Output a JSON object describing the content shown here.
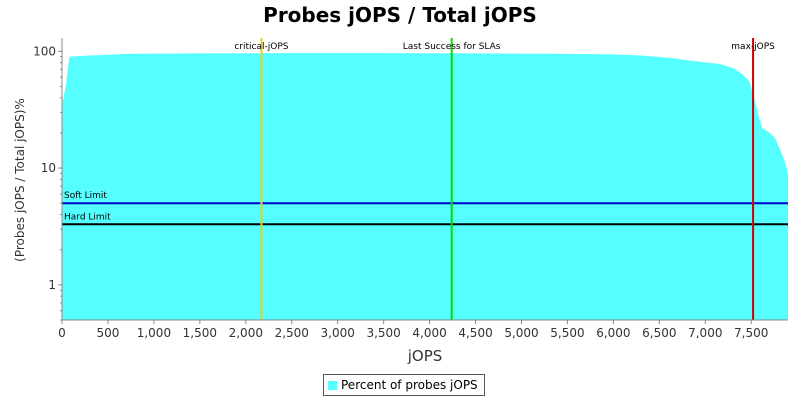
{
  "chart_data": {
    "type": "area",
    "title": "Probes jOPS / Total jOPS",
    "xlabel": "jOPS",
    "ylabel": "(Probes jOPS / Total jOPS)%",
    "yscale": "log",
    "xlim": [
      0,
      7900
    ],
    "ylim": [
      0.5,
      130
    ],
    "x_ticks": [
      0,
      500,
      1000,
      1500,
      2000,
      2500,
      3000,
      3500,
      4000,
      4500,
      5000,
      5500,
      6000,
      6500,
      7000,
      7500
    ],
    "x_tick_labels": [
      "0",
      "500",
      "1,000",
      "1,500",
      "2,000",
      "2,500",
      "3,000",
      "3,500",
      "4,000",
      "4,500",
      "5,000",
      "5,500",
      "6,000",
      "6,500",
      "7,000",
      "7,500"
    ],
    "y_ticks": [
      1,
      10,
      100
    ],
    "y_tick_labels": [
      "1",
      "10",
      "100"
    ],
    "grid": false,
    "legend_position": "bottom",
    "series": [
      {
        "name": "Percent of probes jOPS",
        "color": "#55FFFF",
        "x": [
          0,
          40,
          80,
          300,
          700,
          1500,
          2500,
          3500,
          4500,
          5500,
          6000,
          6300,
          6600,
          6900,
          7150,
          7300,
          7400,
          7480,
          7530,
          7580,
          7620,
          7700,
          7760,
          7820,
          7870,
          7900
        ],
        "y": [
          35,
          50,
          90,
          92,
          95,
          96,
          96.5,
          96.5,
          96,
          95,
          94,
          92,
          88,
          82,
          78,
          72,
          64,
          55,
          40,
          28,
          22,
          20,
          18,
          14,
          11,
          9
        ]
      }
    ],
    "vertical_markers": [
      {
        "label": "critical-jOPS",
        "x": 2170,
        "color": "#E8D020"
      },
      {
        "label": "Last Success for SLAs",
        "x": 4240,
        "color": "#00DD00"
      },
      {
        "label": "max-jOPS",
        "x": 7520,
        "color": "#CC0000"
      }
    ],
    "horizontal_markers": [
      {
        "label": "Soft Limit",
        "y": 5,
        "color": "#0000CC"
      },
      {
        "label": "Hard Limit",
        "y": 3.3,
        "color": "#000000"
      }
    ]
  }
}
